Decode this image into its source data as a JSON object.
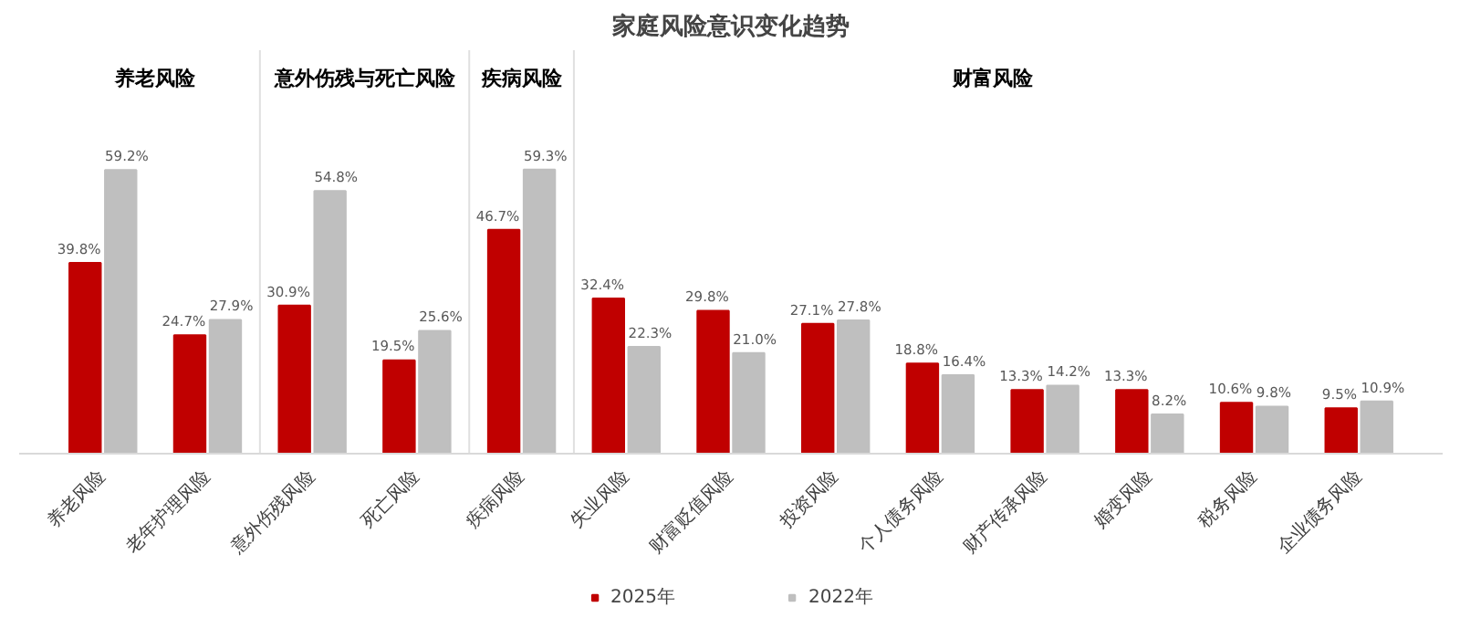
{
  "chart_data": {
    "type": "bar",
    "title": "家庭风险意识变化趋势",
    "categories": [
      "养老风险",
      "老年护理风险",
      "意外伤残风险",
      "死亡风险",
      "疾病风险",
      "失业风险",
      "财富贬值风险",
      "投资风险",
      "个人债务风险",
      "财产传承风险",
      "婚变风险",
      "税务风险",
      "企业债务风险"
    ],
    "series": [
      {
        "name": "2025年",
        "color": "#c00000",
        "values": [
          39.8,
          24.7,
          30.9,
          19.5,
          46.7,
          32.4,
          29.8,
          27.1,
          18.8,
          13.3,
          13.3,
          10.6,
          9.5
        ],
        "value_labels": [
          "39.8%",
          "24.7%",
          "30.9%",
          "19.5%",
          "46.7%",
          "32.4%",
          "29.8%",
          "27.1%",
          "18.8%",
          "13.3%",
          "13.3%",
          "10.6%",
          "9.5%"
        ]
      },
      {
        "name": "2022年",
        "color": "#bfbfbf",
        "values": [
          59.2,
          27.9,
          54.8,
          25.6,
          59.3,
          22.3,
          21.0,
          27.8,
          16.4,
          14.2,
          8.2,
          9.8,
          10.9
        ],
        "value_labels": [
          "59.2%",
          "27.9%",
          "54.8%",
          "25.6%",
          "59.3%",
          "22.3%",
          "21.0%",
          "27.8%",
          "16.4%",
          "14.2%",
          "8.2%",
          "9.8%",
          "10.9%"
        ]
      }
    ],
    "annotations": [
      "养老风险",
      "意外伤残与死亡风险",
      "疾病风险",
      "财富风险"
    ],
    "legend": "bottom"
  }
}
